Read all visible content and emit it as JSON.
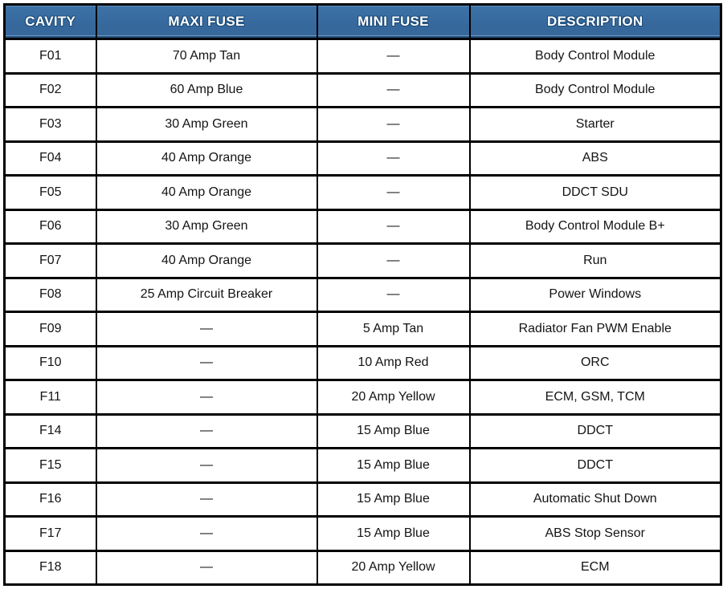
{
  "table": {
    "headers": [
      "CAVITY",
      "MAXI FUSE",
      "MINI FUSE",
      "DESCRIPTION"
    ],
    "rows": [
      {
        "cavity": "F01",
        "maxi_fuse": "70 Amp Tan",
        "mini_fuse": "—",
        "description": "Body Control Module"
      },
      {
        "cavity": "F02",
        "maxi_fuse": "60 Amp Blue",
        "mini_fuse": "—",
        "description": "Body Control Module"
      },
      {
        "cavity": "F03",
        "maxi_fuse": "30 Amp Green",
        "mini_fuse": "—",
        "description": "Starter"
      },
      {
        "cavity": "F04",
        "maxi_fuse": "40 Amp Orange",
        "mini_fuse": "—",
        "description": "ABS"
      },
      {
        "cavity": "F05",
        "maxi_fuse": "40 Amp Orange",
        "mini_fuse": "—",
        "description": "DDCT SDU"
      },
      {
        "cavity": "F06",
        "maxi_fuse": "30 Amp Green",
        "mini_fuse": "—",
        "description": "Body Control Module B+"
      },
      {
        "cavity": "F07",
        "maxi_fuse": "40 Amp Orange",
        "mini_fuse": "—",
        "description": "Run"
      },
      {
        "cavity": "F08",
        "maxi_fuse": "25 Amp Circuit Breaker",
        "mini_fuse": "—",
        "description": "Power Windows"
      },
      {
        "cavity": "F09",
        "maxi_fuse": "—",
        "mini_fuse": "5 Amp Tan",
        "description": "Radiator Fan PWM Enable"
      },
      {
        "cavity": "F10",
        "maxi_fuse": "—",
        "mini_fuse": "10 Amp Red",
        "description": "ORC"
      },
      {
        "cavity": "F11",
        "maxi_fuse": "—",
        "mini_fuse": "20 Amp Yellow",
        "description": "ECM, GSM, TCM"
      },
      {
        "cavity": "F14",
        "maxi_fuse": "—",
        "mini_fuse": "15 Amp Blue",
        "description": "DDCT"
      },
      {
        "cavity": "F15",
        "maxi_fuse": "—",
        "mini_fuse": "15 Amp Blue",
        "description": "DDCT"
      },
      {
        "cavity": "F16",
        "maxi_fuse": "—",
        "mini_fuse": "15 Amp Blue",
        "description": "Automatic Shut Down"
      },
      {
        "cavity": "F17",
        "maxi_fuse": "—",
        "mini_fuse": "15 Amp Blue",
        "description": "ABS Stop Sensor"
      },
      {
        "cavity": "F18",
        "maxi_fuse": "—",
        "mini_fuse": "20 Amp Yellow",
        "description": "ECM"
      }
    ],
    "colors": {
      "header_background": "#36689c",
      "header_text": "#ffffff",
      "border": "#000000",
      "body_text": "#141414"
    }
  }
}
